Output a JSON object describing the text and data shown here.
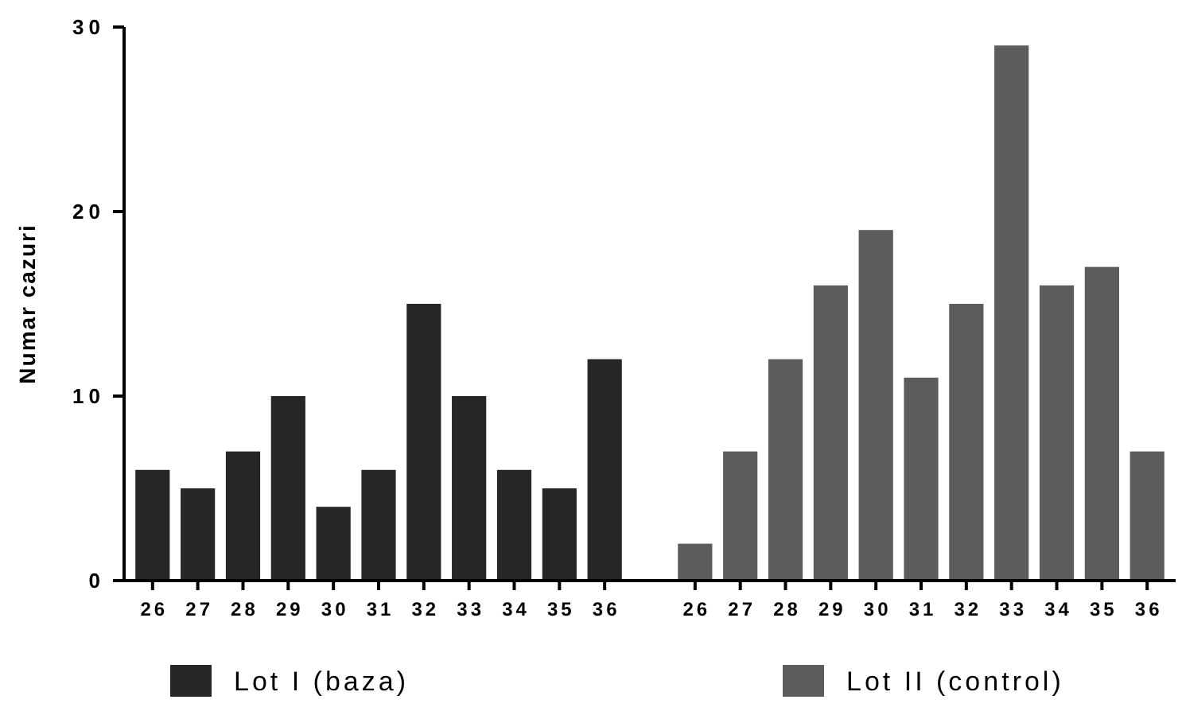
{
  "chart_data": {
    "type": "bar",
    "ylabel": "Numar cazuri",
    "categories": [
      "26",
      "27",
      "28",
      "29",
      "30",
      "31",
      "32",
      "33",
      "34",
      "35",
      "36",
      null,
      "26",
      "27",
      "28",
      "29",
      "30",
      "31",
      "32",
      "33",
      "34",
      "35",
      "36"
    ],
    "series": [
      {
        "name": "Lot I (baza)",
        "color": "#262626",
        "values": [
          6,
          5,
          7,
          10,
          4,
          6,
          15,
          10,
          6,
          5,
          12,
          null,
          null,
          null,
          null,
          null,
          null,
          null,
          null,
          null,
          null,
          null,
          null
        ]
      },
      {
        "name": "Lot II (control)",
        "color": "#5c5c5c",
        "values": [
          null,
          null,
          null,
          null,
          null,
          null,
          null,
          null,
          null,
          null,
          null,
          null,
          2,
          7,
          12,
          16,
          19,
          11,
          15,
          29,
          16,
          17,
          7
        ]
      }
    ],
    "ylim": [
      0,
      30
    ],
    "yticks": [
      0,
      10,
      20,
      30
    ],
    "grid": false,
    "legend": "bottom"
  }
}
